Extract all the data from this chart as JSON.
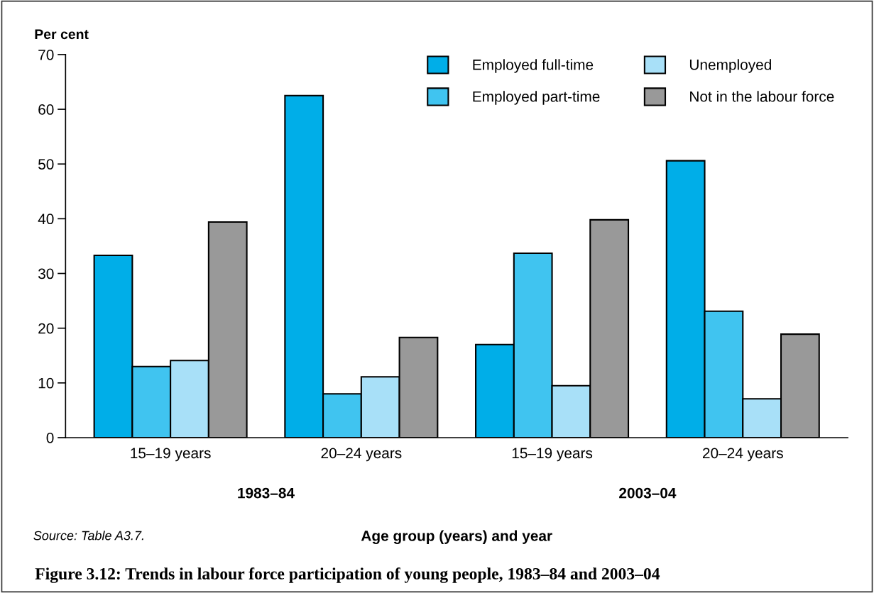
{
  "chart_data": {
    "type": "bar",
    "title": "Figure 3.12: Trends in labour force participation of young people, 1983–84 and 2003–04",
    "ylabel": "Per cent",
    "xlabel": "Age group (years) and year",
    "categories": [
      "15–19 years",
      "20–24 years",
      "15–19 years",
      "20–24 years"
    ],
    "series": [
      {
        "name": "Employed full-time",
        "color": "#00aee8",
        "values": [
          33.3,
          62.5,
          17.0,
          50.6
        ]
      },
      {
        "name": "Employed part-time",
        "color": "#40c4f0",
        "values": [
          13.0,
          8.0,
          33.7,
          23.1
        ]
      },
      {
        "name": "Unemployed",
        "color": "#a8e0f8",
        "values": [
          14.1,
          11.1,
          9.5,
          7.1
        ]
      },
      {
        "name": "Not in the labour force",
        "color": "#999999",
        "values": [
          39.4,
          18.3,
          39.8,
          18.9
        ]
      }
    ],
    "ylim": [
      0,
      70
    ],
    "yticks": [
      0,
      10,
      20,
      30,
      40,
      50,
      60,
      70
    ],
    "annotations": [
      "1983–84",
      "2003–04",
      "Source: Table A3.7."
    ],
    "legend": "top right",
    "grid": false
  }
}
